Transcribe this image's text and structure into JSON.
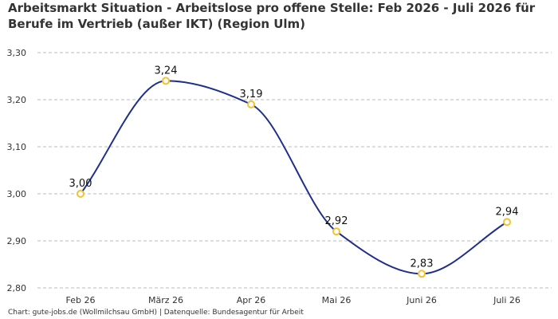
{
  "title_line1": "Arbeitsmarkt Situation - Arbeitslose pro offene Stelle: Feb 2026 - Juli 2026 für",
  "title_line2": "Berufe im Vertrieb (außer IKT) (Region Ulm)",
  "footer": "Chart: gute-jobs.de (Wollmilchsau GmbH) | Datenquelle: Bundesagentur für Arbeit",
  "colors": {
    "line": "#1f2f8c",
    "marker": "#f2c230",
    "grid": "#bbbbbb"
  },
  "chart_data": {
    "type": "line",
    "categories": [
      "Feb 26",
      "März 26",
      "Apr 26",
      "Mai 26",
      "Juni 26",
      "Juli 26"
    ],
    "values": [
      3.0,
      3.24,
      3.19,
      2.92,
      2.83,
      2.94
    ],
    "value_labels": [
      "3,00",
      "3,24",
      "3,19",
      "2,92",
      "2,83",
      "2,94"
    ],
    "yticks": [
      2.8,
      2.9,
      3.0,
      3.1,
      3.2,
      3.3
    ],
    "ytick_labels": [
      "2,80",
      "2,90",
      "3,00",
      "3,10",
      "3,20",
      "3,30"
    ],
    "ylim": [
      2.8,
      3.3
    ],
    "grid": true,
    "smooth": true
  }
}
